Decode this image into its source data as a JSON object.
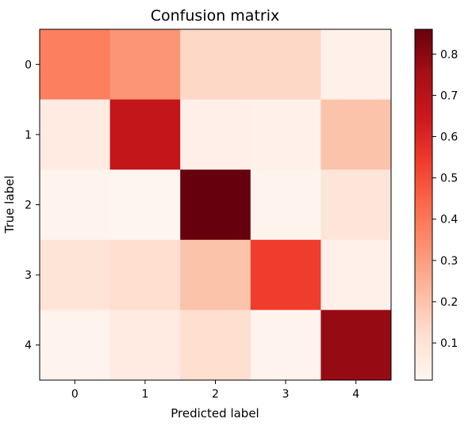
{
  "chart_data": {
    "type": "heatmap",
    "title": "Confusion matrix",
    "xlabel": "Predicted label",
    "ylabel": "True label",
    "x_categories": [
      "0",
      "1",
      "2",
      "3",
      "4"
    ],
    "y_categories": [
      "0",
      "1",
      "2",
      "3",
      "4"
    ],
    "values": [
      [
        0.38,
        0.32,
        0.14,
        0.14,
        0.03
      ],
      [
        0.06,
        0.67,
        0.04,
        0.03,
        0.2
      ],
      [
        0.02,
        0.01,
        0.86,
        0.02,
        0.09
      ],
      [
        0.1,
        0.12,
        0.2,
        0.54,
        0.03
      ],
      [
        0.02,
        0.06,
        0.12,
        0.02,
        0.78
      ]
    ],
    "colormap": "Reds",
    "colorbar": {
      "min": 0.01,
      "max": 0.86,
      "ticks": [
        0.1,
        0.2,
        0.3,
        0.4,
        0.5,
        0.6,
        0.7,
        0.8
      ],
      "tick_labels": [
        "0.1",
        "0.2",
        "0.3",
        "0.4",
        "0.5",
        "0.6",
        "0.7",
        "0.8"
      ]
    },
    "grid": false
  }
}
